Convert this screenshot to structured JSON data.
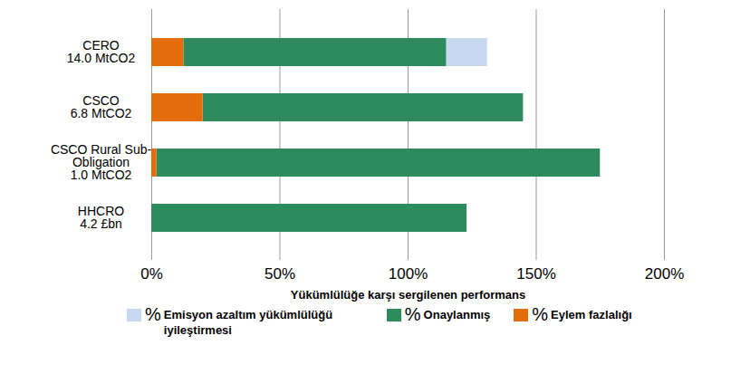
{
  "chart_data": {
    "type": "bar",
    "orientation": "horizontal",
    "stacked": true,
    "grid": true,
    "legend": "bottom",
    "categories": [
      "CERO\n14.0 MtCO2",
      "CSCO\n6.8 MtCO2",
      "CSCO Rural Sub-\nObligation\n1.0 MtCO2",
      "HHCRO\n4.2 £bn"
    ],
    "x_label": "Yükümlülüğe karşı sergilenen performans",
    "xlim": [
      0,
      200
    ],
    "xticks": [
      {
        "value": 0,
        "label": "0%"
      },
      {
        "value": 50,
        "label": "50%"
      },
      {
        "value": 100,
        "label": "100%"
      },
      {
        "value": 150,
        "label": "150%"
      },
      {
        "value": 200,
        "label": "200%"
      }
    ],
    "series": [
      {
        "name": "% Emisyon azaltım yükümlülüğü iyileştirmesi",
        "color": "#c6d9f1",
        "values": [
          16,
          0,
          0,
          0
        ]
      },
      {
        "name": "% Onaylanmış",
        "color": "#2e8b5e",
        "values": [
          102.5,
          125,
          173,
          123
        ]
      },
      {
        "name": "% Eylem fazlalığı",
        "color": "#e46c0a",
        "values": [
          12.5,
          20,
          2,
          0
        ]
      }
    ]
  }
}
